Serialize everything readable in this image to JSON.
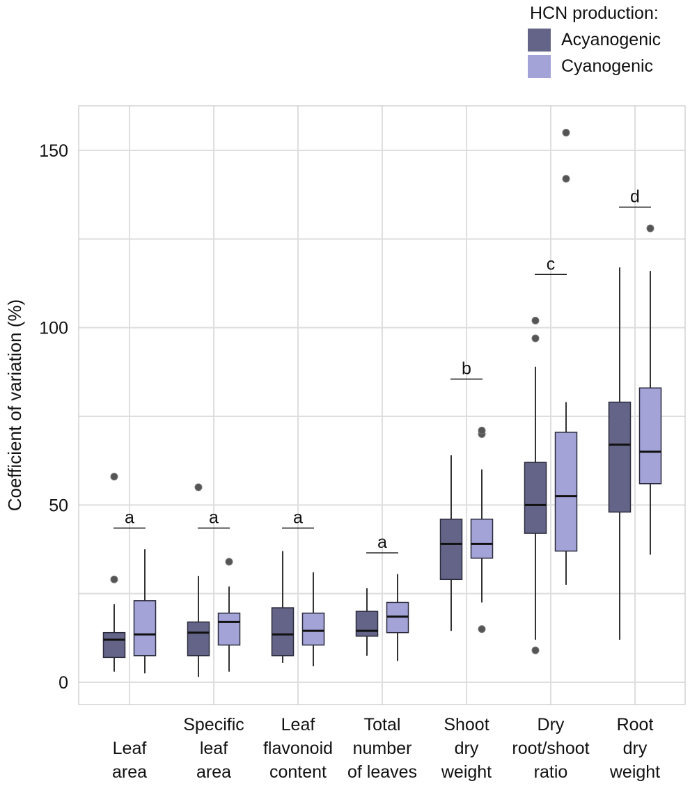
{
  "chart_data": {
    "type": "box",
    "ylabel": "Coefficient of variation (%)",
    "xlabel": "",
    "ylim": [
      -6,
      162
    ],
    "yticks": [
      0,
      50,
      100,
      150
    ],
    "ytick_labels": [
      "0",
      "50",
      "100",
      "150"
    ],
    "minor_gridlines": [
      25,
      75,
      125
    ],
    "grid": true,
    "legend": {
      "title": "HCN production:",
      "placement": "top-right",
      "entries": [
        {
          "name": "Acyanogenic",
          "color": "#646488"
        },
        {
          "name": "Cyanogenic",
          "color": "#a3a3d8"
        }
      ]
    },
    "categories": [
      {
        "lines": [
          "Leaf",
          "area"
        ]
      },
      {
        "lines": [
          "Specific",
          "leaf",
          "area"
        ]
      },
      {
        "lines": [
          "Leaf",
          "flavonoid",
          "content"
        ]
      },
      {
        "lines": [
          "Total",
          "number",
          "of leaves"
        ]
      },
      {
        "lines": [
          "Shoot",
          "dry",
          "weight"
        ]
      },
      {
        "lines": [
          "Dry",
          "root/shoot",
          "ratio"
        ]
      },
      {
        "lines": [
          "Root",
          "dry",
          "weight"
        ]
      }
    ],
    "series": [
      {
        "name": "Acyanogenic",
        "color": "#646488",
        "boxes": [
          {
            "whisker_low": 3,
            "q1": 7,
            "median": 12,
            "q3": 14,
            "whisker_high": 22,
            "outliers": [
              29,
              58
            ]
          },
          {
            "whisker_low": 1.5,
            "q1": 7.5,
            "median": 14,
            "q3": 17,
            "whisker_high": 30,
            "outliers": [
              55
            ]
          },
          {
            "whisker_low": 5.5,
            "q1": 7.5,
            "median": 13.5,
            "q3": 21,
            "whisker_high": 37,
            "outliers": []
          },
          {
            "whisker_low": 7.5,
            "q1": 13,
            "median": 14.5,
            "q3": 20,
            "whisker_high": 26.5,
            "outliers": []
          },
          {
            "whisker_low": 14.5,
            "q1": 29,
            "median": 39,
            "q3": 46,
            "whisker_high": 64,
            "outliers": []
          },
          {
            "whisker_low": 12,
            "q1": 42,
            "median": 50,
            "q3": 62,
            "whisker_high": 89,
            "outliers": [
              9,
              97,
              102
            ]
          },
          {
            "whisker_low": 12,
            "q1": 48,
            "median": 67,
            "q3": 79,
            "whisker_high": 117,
            "outliers": []
          }
        ]
      },
      {
        "name": "Cyanogenic",
        "color": "#a3a3d8",
        "boxes": [
          {
            "whisker_low": 2.5,
            "q1": 7.5,
            "median": 13.5,
            "q3": 23,
            "whisker_high": 37.5,
            "outliers": []
          },
          {
            "whisker_low": 3,
            "q1": 10.5,
            "median": 17,
            "q3": 19.5,
            "whisker_high": 27,
            "outliers": [
              34
            ]
          },
          {
            "whisker_low": 4.5,
            "q1": 10.5,
            "median": 14.5,
            "q3": 19.5,
            "whisker_high": 31,
            "outliers": []
          },
          {
            "whisker_low": 6,
            "q1": 14,
            "median": 18.5,
            "q3": 22.5,
            "whisker_high": 30.5,
            "outliers": []
          },
          {
            "whisker_low": 22.5,
            "q1": 35,
            "median": 39,
            "q3": 46,
            "whisker_high": 60,
            "outliers": [
              15,
              70,
              71
            ]
          },
          {
            "whisker_low": 27.5,
            "q1": 37,
            "median": 52.5,
            "q3": 70.5,
            "whisker_high": 79,
            "outliers": [
              142,
              155
            ]
          },
          {
            "whisker_low": 36,
            "q1": 56,
            "median": 65,
            "q3": 83,
            "whisker_high": 116,
            "outliers": [
              128
            ]
          }
        ]
      }
    ],
    "annotations": [
      {
        "label": "a",
        "category_index": 0,
        "y": 43.5
      },
      {
        "label": "a",
        "category_index": 1,
        "y": 43.5
      },
      {
        "label": "a",
        "category_index": 2,
        "y": 43.5
      },
      {
        "label": "a",
        "category_index": 3,
        "y": 36.5
      },
      {
        "label": "b",
        "category_index": 4,
        "y": 85.5
      },
      {
        "label": "c",
        "category_index": 5,
        "y": 115
      },
      {
        "label": "d",
        "category_index": 6,
        "y": 134
      }
    ]
  }
}
